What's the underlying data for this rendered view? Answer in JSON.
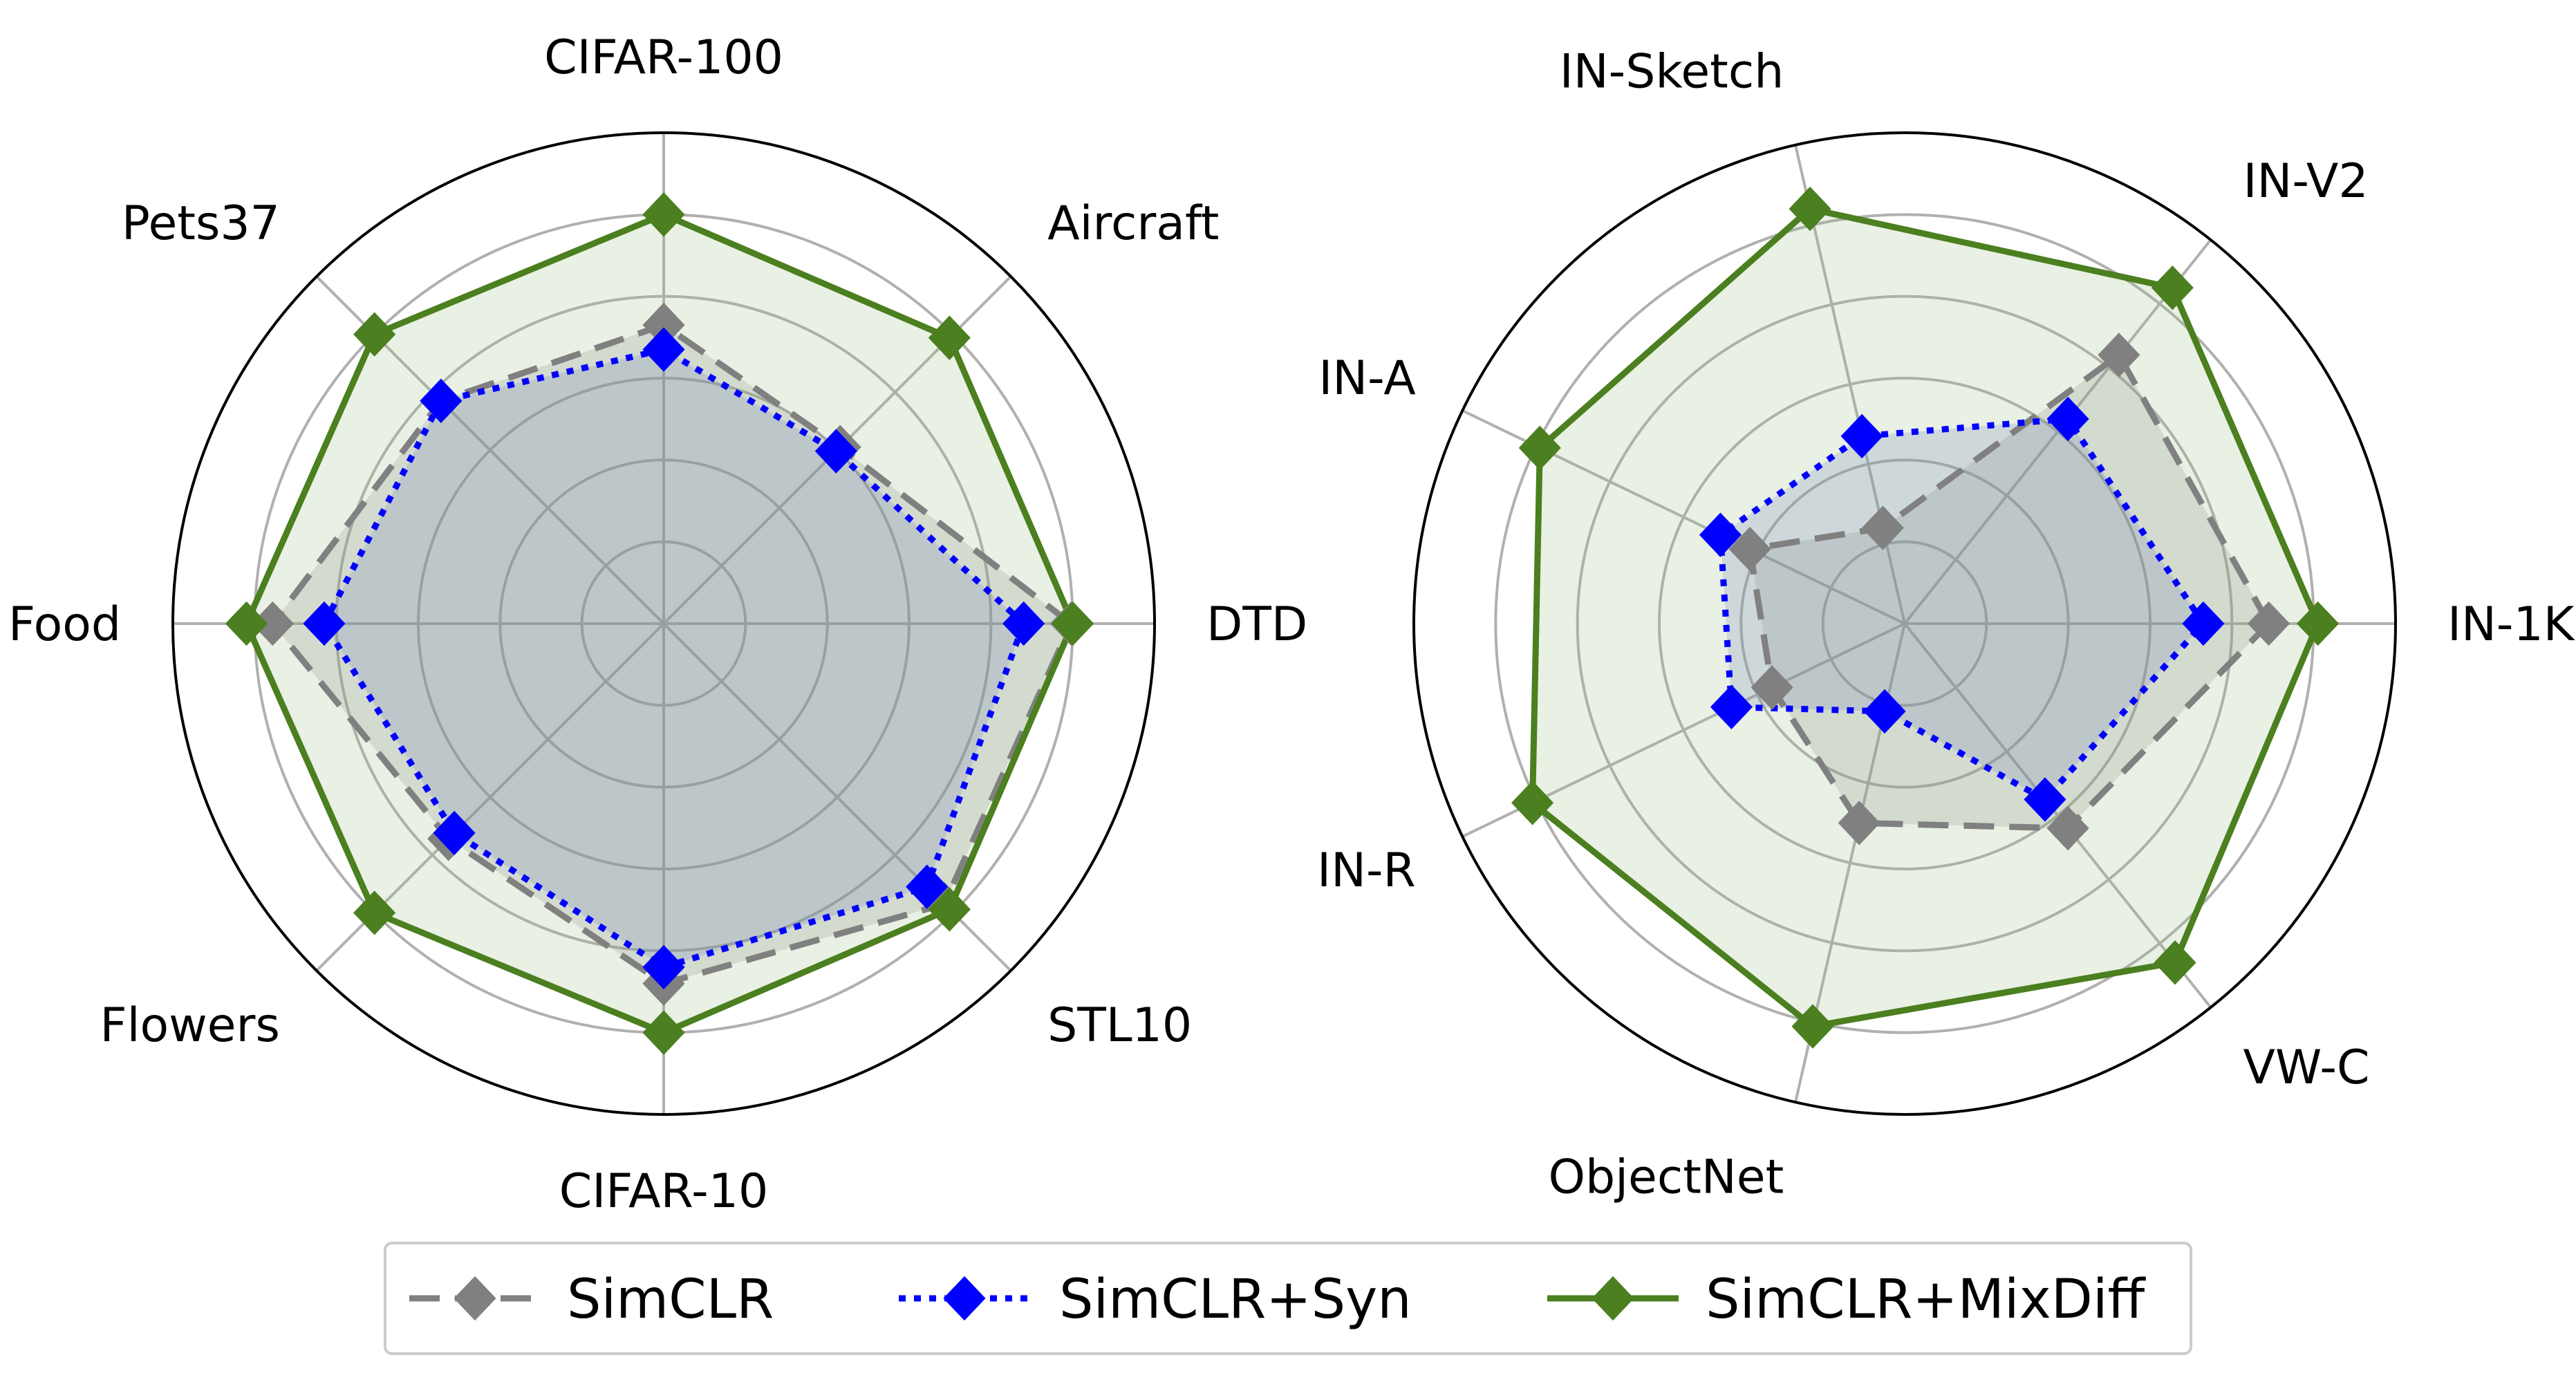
{
  "colors": {
    "simclr": "#808080",
    "syn": "#0000ff",
    "mixdiff": "#4b7f1f",
    "simclr_fill": "#808080",
    "syn_fill": "#6478c8",
    "mixdiff_fill": "#9cba82",
    "grid": "#b0b0b0",
    "frame": "#000000"
  },
  "legend": {
    "placement": "bottom-center",
    "items": [
      "SimCLR",
      "SimCLR+Syn",
      "SimCLR+MixDiff"
    ]
  },
  "chart_data": [
    {
      "type": "radar",
      "title": "",
      "axes": [
        "DTD",
        "Aircraft",
        "CIFAR-100",
        "Pets37",
        "Food",
        "Flowers",
        "CIFAR-10",
        "STL10"
      ],
      "rlim": [
        0,
        6
      ],
      "rings": [
        1,
        2,
        3,
        4,
        5,
        6
      ],
      "grid": true,
      "series": [
        {
          "name": "SimCLR",
          "values": [
            4.98,
            3.05,
            3.65,
            3.85,
            4.78,
            3.72,
            4.4,
            4.85
          ]
        },
        {
          "name": "SimCLR+Syn",
          "values": [
            4.4,
            2.98,
            3.35,
            3.85,
            4.15,
            3.62,
            4.2,
            4.55
          ]
        },
        {
          "name": "SimCLR+MixDiff",
          "values": [
            5.0,
            4.94,
            5.0,
            5.0,
            5.1,
            5.0,
            5.0,
            4.94
          ]
        }
      ]
    },
    {
      "type": "radar",
      "title": "",
      "axes": [
        "IN-1K",
        "IN-V2",
        "IN-Sketch",
        "IN-A",
        "IN-R",
        "ObjectNet",
        "VW-C"
      ],
      "rlim": [
        0,
        6
      ],
      "rings": [
        1,
        2,
        3,
        4,
        5,
        6
      ],
      "grid": true,
      "series": [
        {
          "name": "SimCLR",
          "values": [
            4.45,
            4.2,
            1.2,
            2.1,
            1.8,
            2.5,
            3.2
          ]
        },
        {
          "name": "SimCLR+Syn",
          "values": [
            3.65,
            3.2,
            2.35,
            2.5,
            2.35,
            1.1,
            2.75
          ]
        },
        {
          "name": "SimCLR+MixDiff",
          "values": [
            5.05,
            5.25,
            5.2,
            4.95,
            5.05,
            5.05,
            5.3
          ]
        }
      ]
    }
  ]
}
